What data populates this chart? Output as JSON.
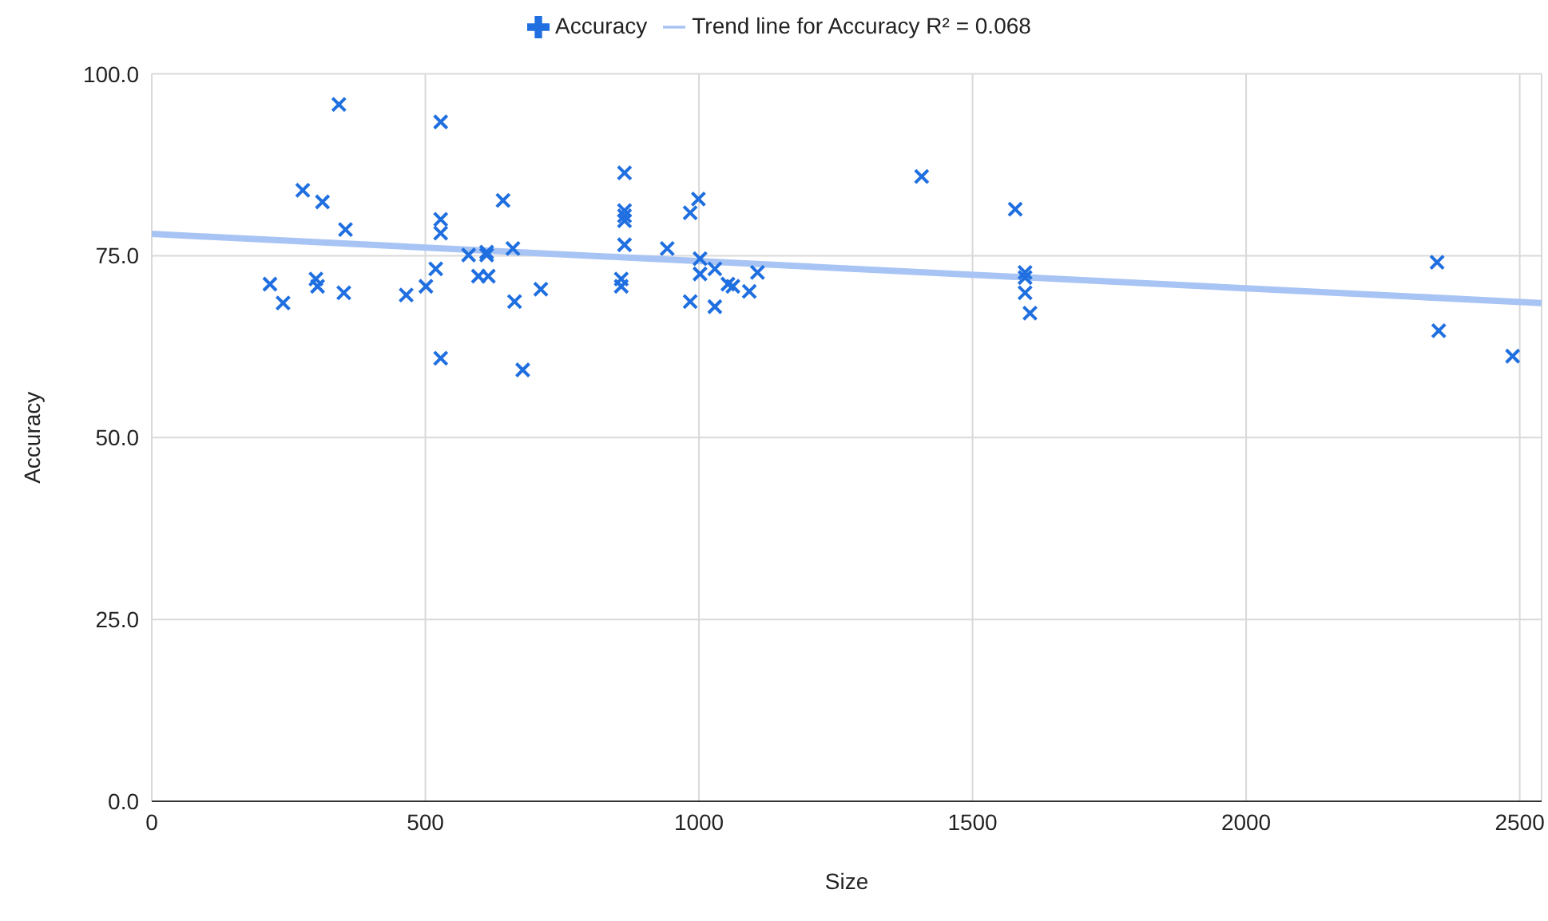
{
  "chart_data": {
    "type": "scatter",
    "xlabel": "Size",
    "ylabel": "Accuracy",
    "xlim": [
      0,
      2540
    ],
    "ylim": [
      0,
      100
    ],
    "xticks": [
      0,
      500,
      1000,
      1500,
      2000,
      2500
    ],
    "yticks": [
      {
        "value": 0,
        "label": "0.0"
      },
      {
        "value": 25,
        "label": "25.0"
      },
      {
        "value": 50,
        "label": "50.0"
      },
      {
        "value": 75,
        "label": "75.0"
      },
      {
        "value": 100,
        "label": "100.0"
      }
    ],
    "grid": true,
    "legend": "top",
    "marker": "cross",
    "series": [
      {
        "name": "Accuracy",
        "color": "#1f6fe0",
        "x": [
          342,
          528,
          276,
          312,
          864,
          864,
          864,
          864,
          354,
          528,
          528,
          642,
          660,
          864,
          942,
          579,
          612,
          612,
          519,
          501,
          465,
          597,
          615,
          216,
          240,
          300,
          303,
          351,
          663,
          711,
          858,
          858,
          528,
          678,
          999,
          984,
          1002,
          1002,
          1029,
          1053,
          1062,
          1107,
          1092,
          984,
          1029,
          1407,
          1578,
          1596,
          1596,
          1596,
          1605,
          2349,
          2352,
          2487
        ],
        "values": [
          95.8,
          93.4,
          84.0,
          82.4,
          86.4,
          81.2,
          80.5,
          79.8,
          78.6,
          80.0,
          78.1,
          82.6,
          76.0,
          76.5,
          76.0,
          75.1,
          75.5,
          75.1,
          73.2,
          70.8,
          69.6,
          72.2,
          72.2,
          71.1,
          68.5,
          71.8,
          70.8,
          69.9,
          68.7,
          70.4,
          71.8,
          70.8,
          60.9,
          59.3,
          82.8,
          80.9,
          74.6,
          72.5,
          73.2,
          71.1,
          70.8,
          72.7,
          70.1,
          68.7,
          68.0,
          85.9,
          81.4,
          72.7,
          72.0,
          69.9,
          67.1,
          74.1,
          64.7,
          61.2
        ]
      },
      {
        "name": "Trend line for Accuracy R² = 0.068",
        "type": "line",
        "color": "#a8c4f4",
        "marker": "none",
        "x": [
          0,
          2540
        ],
        "values": [
          78.0,
          68.5
        ]
      }
    ]
  }
}
